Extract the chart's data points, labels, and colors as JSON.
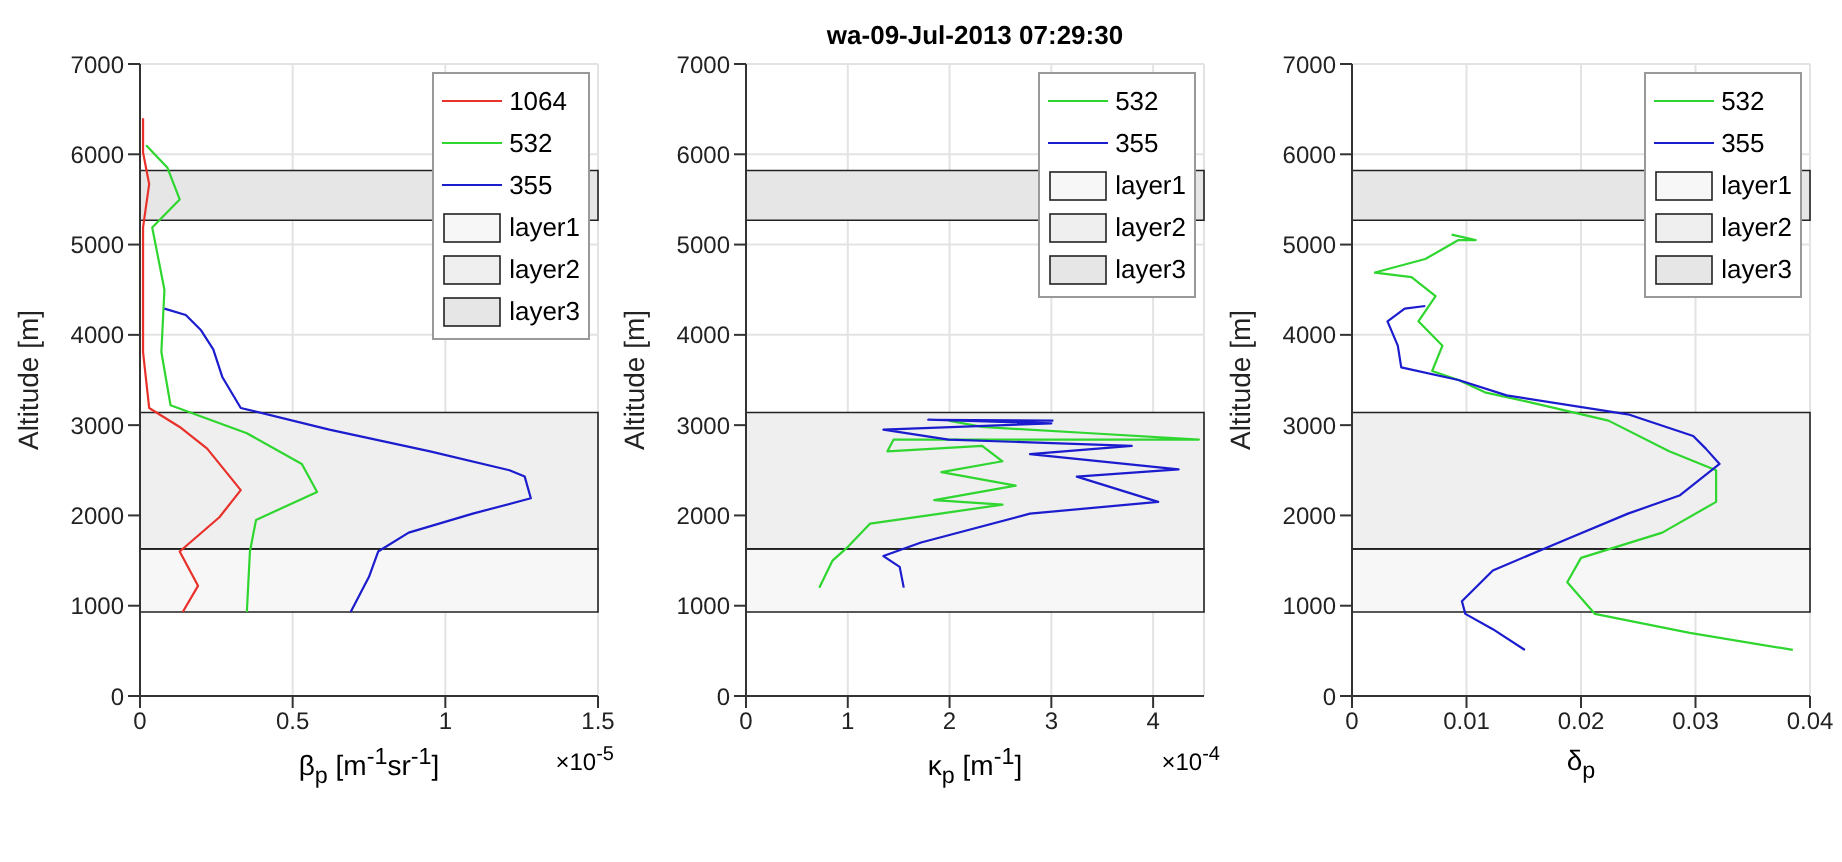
{
  "chart_data": [
    {
      "type": "line",
      "xlabel": "β$_{p}$ [m$^{-1}$sr$^{-1}$]",
      "ylabel": "Altitude [m]",
      "annotations": [
        "×10$^{-5}$"
      ],
      "xlim": [
        0,
        1.5
      ],
      "xticks": [
        0,
        0.5,
        1,
        1.5
      ],
      "ylim": [
        0,
        7000
      ],
      "yticks": [
        0,
        1000,
        2000,
        3000,
        4000,
        5000,
        6000,
        7000
      ],
      "grid": true,
      "legend": "top right",
      "marker": "none",
      "series": [
        {
          "name": "1064",
          "color": "#e8312a",
          "x": [
            0.14,
            0.19,
            0.13,
            0.26,
            0.33,
            0.22,
            0.13,
            0.03,
            0.01,
            0.01,
            0.03,
            0.01,
            0.01
          ],
          "values": [
            930,
            1220,
            1600,
            1980,
            2280,
            2740,
            2980,
            3190,
            3810,
            5190,
            5670,
            6020,
            6400
          ]
        },
        {
          "name": "532",
          "color": "#2fd62f",
          "x": [
            0.35,
            0.36,
            0.38,
            0.58,
            0.53,
            0.35,
            0.1,
            0.07,
            0.08,
            0.04,
            0.13,
            0.09,
            0.02
          ],
          "values": [
            930,
            1600,
            1950,
            2260,
            2570,
            2910,
            3220,
            3810,
            4500,
            5190,
            5500,
            5850,
            6100
          ]
        },
        {
          "name": "355",
          "color": "#1c1ccf",
          "x": [
            0.69,
            0.75,
            0.78,
            0.88,
            1.09,
            1.28,
            1.26,
            1.21,
            0.95,
            0.62,
            0.33,
            0.27,
            0.24,
            0.2,
            0.15,
            0.08
          ],
          "values": [
            930,
            1320,
            1600,
            1810,
            2020,
            2190,
            2430,
            2500,
            2710,
            2950,
            3190,
            3530,
            3840,
            4050,
            4220,
            4290
          ]
        }
      ],
      "bands": [
        {
          "axis": "y",
          "from": 930,
          "to": 1630,
          "label": "layer1",
          "color": "#f7f7f7"
        },
        {
          "axis": "y",
          "from": 1630,
          "to": 3140,
          "label": "layer2",
          "color": "#efefef"
        },
        {
          "axis": "y",
          "from": 5270,
          "to": 5820,
          "label": "layer3",
          "color": "#e6e6e6"
        }
      ]
    },
    {
      "type": "line",
      "title": "wa-09-Jul-2013 07:29:30",
      "xlabel": "κ$_{p}$ [m$^{-1}$]",
      "ylabel": "Altitude [m]",
      "annotations": [
        "×10$^{-4}$"
      ],
      "xlim": [
        0,
        4.5
      ],
      "xticks": [
        0,
        1,
        2,
        3,
        4
      ],
      "ylim": [
        0,
        7000
      ],
      "yticks": [
        0,
        1000,
        2000,
        3000,
        4000,
        5000,
        6000,
        7000
      ],
      "grid": true,
      "legend": "top right",
      "marker": "none",
      "series": [
        {
          "name": "532",
          "color": "#2fd62f",
          "x": [
            0.72,
            0.85,
            0.99,
            1.22,
            1.79,
            2.52,
            1.85,
            2.65,
            1.92,
            2.52,
            2.32,
            1.39,
            1.45,
            4.45,
            3.39,
            2.32,
            1.99
          ],
          "values": [
            1200,
            1500,
            1640,
            1910,
            2000,
            2120,
            2170,
            2330,
            2480,
            2600,
            2770,
            2710,
            2840,
            2840,
            2910,
            2980,
            3050
          ]
        },
        {
          "name": "355",
          "color": "#1c1ccf",
          "x": [
            1.55,
            1.51,
            1.35,
            1.72,
            2.79,
            4.05,
            3.25,
            4.25,
            2.79,
            3.79,
            1.99,
            1.35,
            3.0,
            1.79,
            3.02
          ],
          "values": [
            1200,
            1430,
            1550,
            1700,
            2020,
            2150,
            2430,
            2510,
            2680,
            2770,
            2840,
            2950,
            3020,
            3060,
            3050
          ]
        }
      ],
      "bands": [
        {
          "axis": "y",
          "from": 930,
          "to": 1630,
          "label": "layer1",
          "color": "#f7f7f7"
        },
        {
          "axis": "y",
          "from": 1630,
          "to": 3140,
          "label": "layer2",
          "color": "#efefef"
        },
        {
          "axis": "y",
          "from": 5270,
          "to": 5820,
          "label": "layer3",
          "color": "#e6e6e6"
        }
      ]
    },
    {
      "type": "line",
      "xlabel": "δ$_{p}$",
      "ylabel": "Altitude [m]",
      "xlim": [
        0,
        0.04
      ],
      "xticks": [
        0,
        0.01,
        0.02,
        0.03,
        0.04
      ],
      "ylim": [
        0,
        7000
      ],
      "yticks": [
        0,
        1000,
        2000,
        3000,
        4000,
        5000,
        6000,
        7000
      ],
      "grid": true,
      "legend": "top right",
      "marker": "none",
      "series": [
        {
          "name": "532",
          "color": "#2fd62f",
          "x": [
            0.0385,
            0.0295,
            0.0212,
            0.0188,
            0.02,
            0.0271,
            0.0318,
            0.0318,
            0.0277,
            0.0224,
            0.0153,
            0.0117,
            0.0093,
            0.007,
            0.0079,
            0.0058,
            0.0073,
            0.0052,
            0.002,
            0.0064,
            0.0093,
            0.0108,
            0.0087
          ],
          "values": [
            510,
            700,
            910,
            1260,
            1530,
            1810,
            2150,
            2500,
            2710,
            3050,
            3260,
            3360,
            3500,
            3600,
            3880,
            4150,
            4430,
            4640,
            4690,
            4840,
            5050,
            5050,
            5110
          ]
        },
        {
          "name": "355",
          "color": "#1c1ccf",
          "x": [
            0.0151,
            0.0123,
            0.0099,
            0.0096,
            0.0123,
            0.0188,
            0.0241,
            0.0286,
            0.0321,
            0.0309,
            0.0298,
            0.0241,
            0.0135,
            0.0093,
            0.0043,
            0.004,
            0.0031,
            0.0046,
            0.0064
          ],
          "values": [
            510,
            740,
            910,
            1050,
            1390,
            1740,
            2020,
            2220,
            2570,
            2740,
            2880,
            3120,
            3330,
            3500,
            3640,
            3880,
            4150,
            4290,
            4320
          ]
        }
      ],
      "bands": [
        {
          "axis": "y",
          "from": 930,
          "to": 1630,
          "label": "layer1",
          "color": "#f7f7f7"
        },
        {
          "axis": "y",
          "from": 1630,
          "to": 3140,
          "label": "layer2",
          "color": "#efefef"
        },
        {
          "axis": "y",
          "from": 5270,
          "to": 5820,
          "label": "layer3",
          "color": "#e6e6e6"
        }
      ]
    }
  ]
}
